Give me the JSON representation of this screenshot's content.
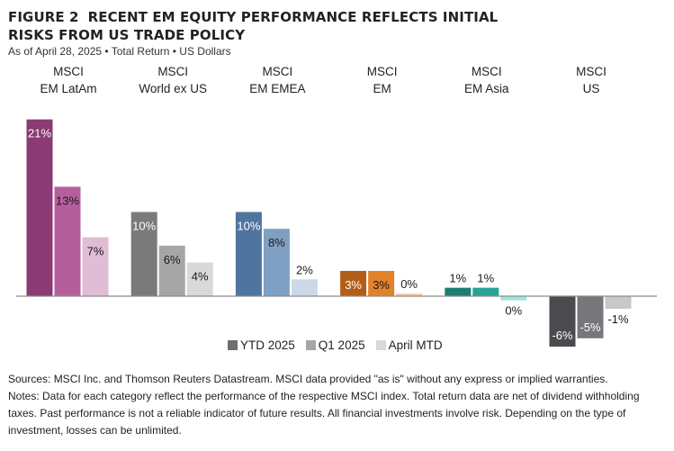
{
  "header": {
    "figure_label": "FIGURE 2",
    "title": "RECENT EM EQUITY PERFORMANCE REFLECTS INITIAL RISKS FROM US TRADE POLICY",
    "subtitle": "As of April 28, 2025 • Total Return • US Dollars"
  },
  "chart_data": {
    "type": "bar",
    "title": "RECENT EM EQUITY PERFORMANCE REFLECTS INITIAL RISKS FROM US TRADE POLICY",
    "xlabel": "",
    "ylabel": "",
    "grid": false,
    "legend_position": "bottom",
    "ylim": [
      -7,
      22
    ],
    "categories": [
      [
        "MSCI",
        "EM LatAm"
      ],
      [
        "MSCI",
        "World ex US"
      ],
      [
        "MSCI",
        "EM EMEA"
      ],
      [
        "MSCI",
        "EM"
      ],
      [
        "MSCI",
        "EM Asia"
      ],
      [
        "MSCI",
        "US"
      ]
    ],
    "series": [
      {
        "name": "YTD 2025",
        "values": [
          21,
          10,
          10,
          3,
          1,
          -6
        ],
        "labels": [
          "21%",
          "10%",
          "10%",
          "3%",
          "1%",
          "-6%"
        ]
      },
      {
        "name": "Q1 2025",
        "values": [
          13,
          6,
          8,
          3,
          1,
          -5
        ],
        "labels": [
          "13%",
          "6%",
          "8%",
          "3%",
          "1%",
          "-5%"
        ]
      },
      {
        "name": "April MTD",
        "values": [
          7,
          4,
          2,
          0.3,
          -0.5,
          -1.5
        ],
        "labels": [
          "7%",
          "4%",
          "2%",
          "0%",
          "0%",
          "-1%"
        ]
      }
    ],
    "colors": [
      [
        "#8b3a74",
        "#b45f9c",
        "#e0bcd6"
      ],
      [
        "#7a7a7a",
        "#a6a6a6",
        "#d9d9d9"
      ],
      [
        "#4f759f",
        "#7f9fc3",
        "#ccd8e7"
      ],
      [
        "#b35e18",
        "#e2822b",
        "#f6c9a3"
      ],
      [
        "#1e7c72",
        "#27a495",
        "#9fe5dc"
      ],
      [
        "#4b4b4f",
        "#77777b",
        "#c8c8c8"
      ]
    ],
    "label_colors": [
      [
        "#ffffff",
        "#1a1a1a",
        "#1a1a1a"
      ],
      [
        "#ffffff",
        "#1a1a1a",
        "#1a1a1a"
      ],
      [
        "#ffffff",
        "#1a1a1a",
        "#1a1a1a"
      ],
      [
        "#ffffff",
        "#1a1a1a",
        "#1a1a1a"
      ],
      [
        "#1a1a1a",
        "#1a1a1a",
        "#1a1a1a"
      ],
      [
        "#ffffff",
        "#ffffff",
        "#1a1a1a"
      ]
    ],
    "legend_colors": [
      "#6e6e6e",
      "#a6a6a6",
      "#d9d9d9"
    ]
  },
  "legend": {
    "items": [
      "YTD 2025",
      "Q1 2025",
      "April MTD"
    ]
  },
  "footer": {
    "sources": "Sources: MSCI Inc. and Thomson Reuters Datastream. MSCI data provided \"as is\" without any express or implied warranties.",
    "notes": "Notes: Data for each category reflect the performance of the respective MSCI index. Total return data are net of dividend withholding taxes. Past performance is not a reliable indicator of future results. All financial investments involve risk. Depending on the type of investment, losses can be unlimited."
  }
}
